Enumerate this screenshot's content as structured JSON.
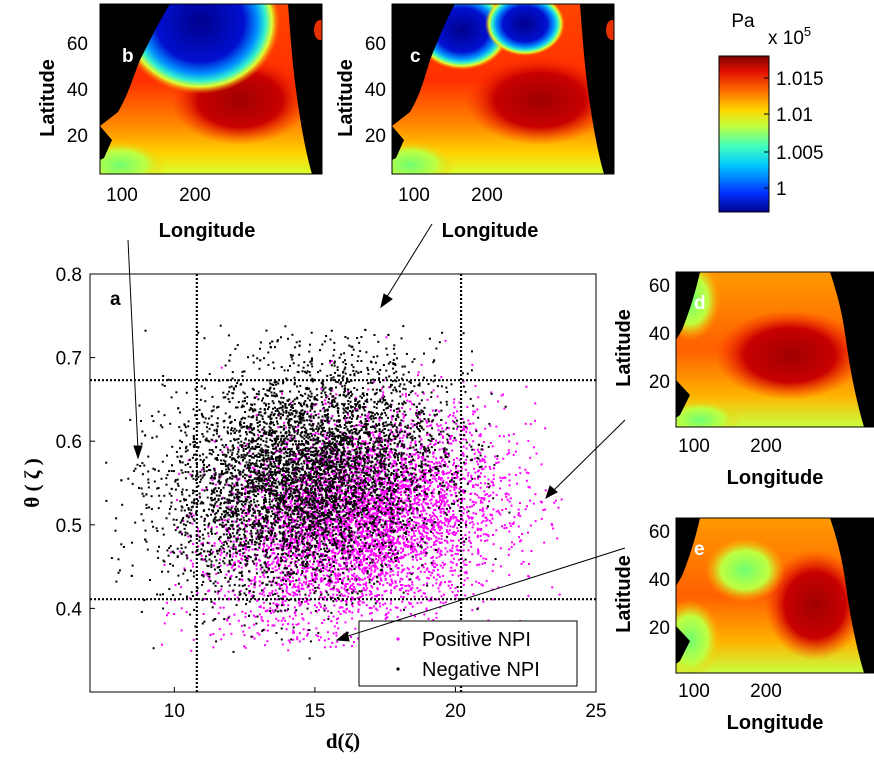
{
  "chart_data": [
    {
      "panel": "a",
      "type": "scatter",
      "xlabel": "d(ζ)",
      "ylabel": "θ ( ζ )",
      "xlim": [
        7,
        25
      ],
      "ylim": [
        0.3,
        0.8
      ],
      "xticks": [
        10,
        15,
        20,
        25
      ],
      "yticks": [
        0.4,
        0.5,
        0.6,
        0.7,
        0.8
      ],
      "grid": false,
      "legend_position": "bottom-right",
      "reference_lines": {
        "vertical_x": [
          10.8,
          20.2
        ],
        "horizontal_y": [
          0.411,
          0.673
        ]
      },
      "series": [
        {
          "name": "Positive NPI",
          "color": "#ff00ff",
          "point_cloud": {
            "n": 5200,
            "x_mean": 16.6,
            "x_sd": 2.5,
            "y_mean": 0.505,
            "y_sd": 0.06,
            "x_range": [
              9.5,
              24
            ],
            "y_range": [
              0.35,
              0.77
            ]
          }
        },
        {
          "name": "Negative NPI",
          "color": "#000000",
          "point_cloud": {
            "n": 5600,
            "x_mean": 14.6,
            "x_sd": 2.4,
            "y_mean": 0.56,
            "y_sd": 0.065,
            "x_range": [
              7.5,
              22
            ],
            "y_range": [
              0.34,
              0.74
            ]
          }
        }
      ]
    },
    {
      "panel": "b",
      "type": "heatmap",
      "xlabel": "Longitude",
      "ylabel": "Latitude",
      "xticks": [
        100,
        200
      ],
      "yticks": [
        20,
        40,
        60
      ]
    },
    {
      "panel": "c",
      "type": "heatmap",
      "xlabel": "Longitude",
      "ylabel": "Latitude",
      "xticks": [
        100,
        200
      ],
      "yticks": [
        20,
        40,
        60
      ]
    },
    {
      "panel": "d",
      "type": "heatmap",
      "xlabel": "Longitude",
      "ylabel": "Latitude",
      "xticks": [
        100,
        200
      ],
      "yticks": [
        20,
        40,
        60
      ]
    },
    {
      "panel": "e",
      "type": "heatmap",
      "xlabel": "Longitude",
      "ylabel": "Latitude",
      "xticks": [
        100,
        200
      ],
      "yticks": [
        20,
        40,
        60
      ]
    }
  ],
  "colorbar": {
    "unit": "Pa",
    "multiplier": "x 10",
    "exponent": "5",
    "ticks": [
      "1.015",
      "1.01",
      "1.005",
      "1"
    ]
  }
}
